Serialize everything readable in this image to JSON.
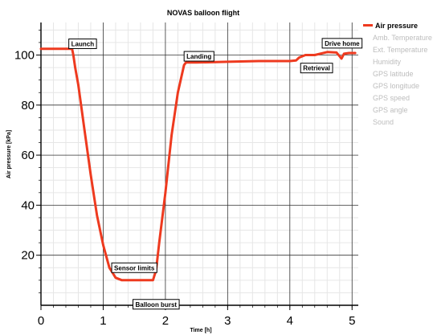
{
  "chart_data": {
    "type": "line",
    "title": "NOVAS balloon flight",
    "xlabel": "Time [h]",
    "ylabel": "Air pressure [kPa]",
    "xlim": [
      0,
      5.1
    ],
    "ylim": [
      0,
      113
    ],
    "xticks": [
      0,
      1,
      2,
      3,
      4,
      5
    ],
    "yticks": [
      20,
      40,
      60,
      80,
      100
    ],
    "grid": true,
    "legend_position": "right",
    "series": [
      {
        "name": "Air pressure",
        "color": "#ee3a1f",
        "x": [
          0,
          0.5,
          0.52,
          0.55,
          0.6,
          0.7,
          0.8,
          0.9,
          1.0,
          1.1,
          1.15,
          1.2,
          1.3,
          1.5,
          1.7,
          1.8,
          1.85,
          1.9,
          2.0,
          2.1,
          2.2,
          2.3,
          2.33,
          2.5,
          3.0,
          3.5,
          4.0,
          4.1,
          4.15,
          4.25,
          4.4,
          4.6,
          4.75,
          4.8,
          4.83,
          4.87,
          4.95,
          5.05
        ],
        "y": [
          102.5,
          102.5,
          100,
          95,
          88,
          70,
          52,
          36,
          24,
          15,
          13,
          11,
          10,
          10,
          10,
          10,
          14,
          25,
          45,
          68,
          85,
          96,
          97,
          97,
          97.3,
          97.6,
          97.6,
          97.8,
          99,
          100,
          100,
          101.2,
          101,
          99.5,
          98.6,
          100.5,
          100.8,
          100.8
        ]
      }
    ],
    "annotations": [
      {
        "text": "Launch",
        "x": 0.67,
        "y": 104.5
      },
      {
        "text": "Sensor limits",
        "x": 1.5,
        "y": 15
      },
      {
        "text": "Balloon burst",
        "x": 1.85,
        "y": 0.4
      },
      {
        "text": "Landing",
        "x": 2.54,
        "y": 99.5
      },
      {
        "text": "Retrieval",
        "x": 4.43,
        "y": 94.8
      },
      {
        "text": "Drive home",
        "x": 4.84,
        "y": 104.7
      }
    ]
  },
  "legend": {
    "items": [
      {
        "label": "Air pressure",
        "active": true
      },
      {
        "label": "Amb. Temperature",
        "active": false
      },
      {
        "label": "Ext. Temperature",
        "active": false
      },
      {
        "label": "Humidity",
        "active": false
      },
      {
        "label": "GPS latitude",
        "active": false
      },
      {
        "label": "GPS longitude",
        "active": false
      },
      {
        "label": "GPS speed",
        "active": false
      },
      {
        "label": "GPS angle",
        "active": false
      },
      {
        "label": "Sound",
        "active": false
      }
    ]
  }
}
